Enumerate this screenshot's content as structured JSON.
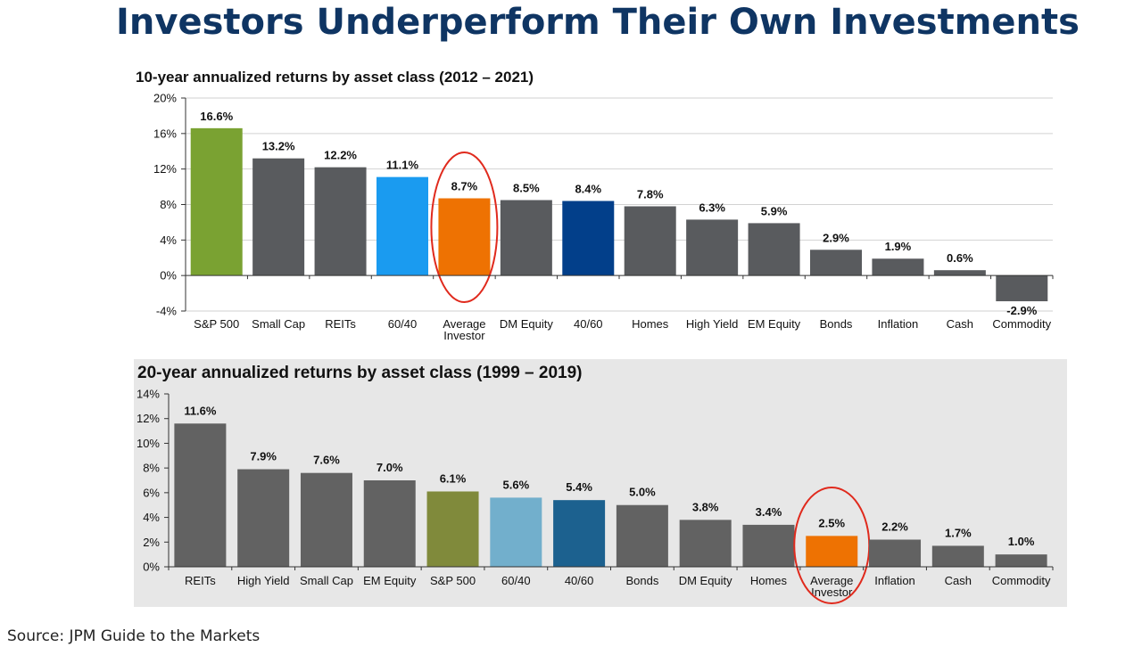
{
  "title": "Investors Underperform Their Own Investments",
  "source": "Source: JPM Guide to the Markets",
  "colors": {
    "gray": "#595b5e",
    "gray2": "#626262",
    "green": "#7aa232",
    "olive": "#808a3b",
    "lightblue": "#1a9bf0",
    "lightblue2": "#72afcc",
    "orange": "#ee7202",
    "darkblue": "#023f8a",
    "darkblue2": "#1c618f",
    "circle": "#e02a1d"
  },
  "chart_data": [
    {
      "type": "bar",
      "title": "10-year annualized returns by asset class (2012 – 2021)",
      "categories": [
        "S&P 500",
        "Small Cap",
        "REITs",
        "60/40",
        "Average Investor",
        "DM Equity",
        "40/60",
        "Homes",
        "High Yield",
        "EM Equity",
        "Bonds",
        "Inflation",
        "Cash",
        "Commodity"
      ],
      "category_lines": [
        [
          "S&P 500"
        ],
        [
          "Small Cap"
        ],
        [
          "REITs"
        ],
        [
          "60/40"
        ],
        [
          "Average",
          "Investor"
        ],
        [
          "DM Equity"
        ],
        [
          "40/60"
        ],
        [
          "Homes"
        ],
        [
          "High Yield"
        ],
        [
          "EM Equity"
        ],
        [
          "Bonds"
        ],
        [
          "Inflation"
        ],
        [
          "Cash"
        ],
        [
          "Commodity"
        ]
      ],
      "values": [
        16.6,
        13.2,
        12.2,
        11.1,
        8.7,
        8.5,
        8.4,
        7.8,
        6.3,
        5.9,
        2.9,
        1.9,
        0.6,
        -2.9
      ],
      "data_labels": [
        "16.6%",
        "13.2%",
        "12.2%",
        "11.1%",
        "8.7%",
        "8.5%",
        "8.4%",
        "7.8%",
        "6.3%",
        "5.9%",
        "2.9%",
        "1.9%",
        "0.6%",
        "-2.9%"
      ],
      "bar_colors": [
        "green",
        "gray",
        "gray",
        "lightblue",
        "orange",
        "gray",
        "darkblue",
        "gray",
        "gray",
        "gray",
        "gray",
        "gray",
        "gray",
        "gray"
      ],
      "highlight": "Average Investor",
      "ylim": [
        -4,
        20
      ],
      "yticks": [
        -4,
        0,
        4,
        8,
        12,
        16,
        20
      ],
      "ytick_labels": [
        "-4%",
        "0%",
        "4%",
        "8%",
        "12%",
        "16%",
        "20%"
      ],
      "grid": true,
      "xlabel": "",
      "ylabel": ""
    },
    {
      "type": "bar",
      "title": "20-year annualized returns by asset class (1999 – 2019)",
      "categories": [
        "REITs",
        "High Yield",
        "Small Cap",
        "EM Equity",
        "S&P 500",
        "60/40",
        "40/60",
        "Bonds",
        "DM Equity",
        "Homes",
        "Average Investor",
        "Inflation",
        "Cash",
        "Commodity"
      ],
      "category_lines": [
        [
          "REITs"
        ],
        [
          "High Yield"
        ],
        [
          "Small Cap"
        ],
        [
          "EM Equity"
        ],
        [
          "S&P 500"
        ],
        [
          "60/40"
        ],
        [
          "40/60"
        ],
        [
          "Bonds"
        ],
        [
          "DM Equity"
        ],
        [
          "Homes"
        ],
        [
          "Average",
          "Investor"
        ],
        [
          "Inflation"
        ],
        [
          "Cash"
        ],
        [
          "Commodity"
        ]
      ],
      "values": [
        11.6,
        7.9,
        7.6,
        7.0,
        6.1,
        5.6,
        5.4,
        5.0,
        3.8,
        3.4,
        2.5,
        2.2,
        1.7,
        1.0
      ],
      "data_labels": [
        "11.6%",
        "7.9%",
        "7.6%",
        "7.0%",
        "6.1%",
        "5.6%",
        "5.4%",
        "5.0%",
        "3.8%",
        "3.4%",
        "2.5%",
        "2.2%",
        "1.7%",
        "1.0%"
      ],
      "bar_colors": [
        "gray2",
        "gray2",
        "gray2",
        "gray2",
        "olive",
        "lightblue2",
        "darkblue2",
        "gray2",
        "gray2",
        "gray2",
        "orange",
        "gray2",
        "gray2",
        "gray2"
      ],
      "highlight": "Average Investor",
      "ylim": [
        0,
        14
      ],
      "yticks": [
        0,
        2,
        4,
        6,
        8,
        10,
        12,
        14
      ],
      "ytick_labels": [
        "0%",
        "2%",
        "4%",
        "6%",
        "8%",
        "10%",
        "12%",
        "14%"
      ],
      "grid": false,
      "xlabel": "",
      "ylabel": ""
    }
  ]
}
